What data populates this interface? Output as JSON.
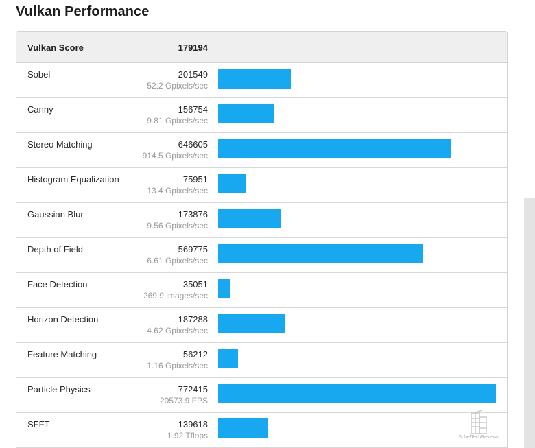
{
  "section_title": "Vulkan Performance",
  "score_header": {
    "label": "Vulkan Score",
    "value": "179194"
  },
  "accent_color": "#18a8f0",
  "benchmarks": [
    {
      "name": "Sobel",
      "score": "201549",
      "rate": "52.2 Gpixels/sec",
      "value": 201549
    },
    {
      "name": "Canny",
      "score": "156754",
      "rate": "9.81 Gpixels/sec",
      "value": 156754
    },
    {
      "name": "Stereo Matching",
      "score": "646605",
      "rate": "914.5 Gpixels/sec",
      "value": 646605
    },
    {
      "name": "Histogram Equalization",
      "score": "75951",
      "rate": "13.4 Gpixels/sec",
      "value": 75951
    },
    {
      "name": "Gaussian Blur",
      "score": "173876",
      "rate": "9.56 Gpixels/sec",
      "value": 173876
    },
    {
      "name": "Depth of Field",
      "score": "569775",
      "rate": "6.61 Gpixels/sec",
      "value": 569775
    },
    {
      "name": "Face Detection",
      "score": "35051",
      "rate": "269.9 images/sec",
      "value": 35051
    },
    {
      "name": "Horizon Detection",
      "score": "187288",
      "rate": "4.62 Gpixels/sec",
      "value": 187288
    },
    {
      "name": "Feature Matching",
      "score": "56212",
      "rate": "1.16 Gpixels/sec",
      "value": 56212
    },
    {
      "name": "Particle Physics",
      "score": "772415",
      "rate": "20573.9 FPS",
      "value": 772415
    },
    {
      "name": "SFFT",
      "score": "139618",
      "rate": "1.92 Tflops",
      "value": 139618
    }
  ],
  "bar_max_value": 772415,
  "watermark": {
    "icon": "building-logo-icon",
    "text": "SobelTechReviews"
  }
}
